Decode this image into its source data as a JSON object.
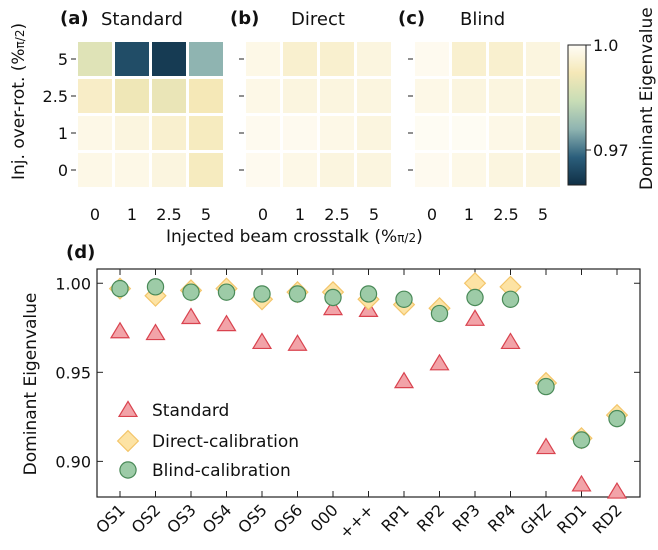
{
  "chart_data": [
    {
      "type": "heatmap",
      "panel_label": "(a)",
      "title": "Standard",
      "x_categories": [
        "0",
        "1",
        "2.5",
        "5"
      ],
      "y_categories": [
        "5",
        "2.5",
        "1",
        "0"
      ],
      "values": [
        [
          0.988,
          0.965,
          0.962,
          0.976
        ],
        [
          0.994,
          0.991,
          0.99,
          0.992
        ],
        [
          0.998,
          0.997,
          0.995,
          0.993
        ],
        [
          0.998,
          0.998,
          0.997,
          0.993
        ]
      ]
    },
    {
      "type": "heatmap",
      "panel_label": "(b)",
      "title": "Direct",
      "x_categories": [
        "0",
        "1",
        "2.5",
        "5"
      ],
      "y_categories": [
        "5",
        "2.5",
        "1",
        "0"
      ],
      "values": [
        [
          0.998,
          0.995,
          0.995,
          0.997
        ],
        [
          0.998,
          0.997,
          0.997,
          0.997
        ],
        [
          0.999,
          0.999,
          0.998,
          0.997
        ],
        [
          0.999,
          0.998,
          0.997,
          0.997
        ]
      ]
    },
    {
      "type": "heatmap",
      "panel_label": "(c)",
      "title": "Blind",
      "x_categories": [
        "0",
        "1",
        "2.5",
        "5"
      ],
      "y_categories": [
        "5",
        "2.5",
        "1",
        "0"
      ],
      "values": [
        [
          0.999,
          0.995,
          0.995,
          0.997
        ],
        [
          0.998,
          0.997,
          0.997,
          0.997
        ],
        [
          0.9995,
          0.9995,
          0.998,
          0.997
        ],
        [
          0.999,
          0.998,
          0.997,
          0.997
        ]
      ]
    },
    {
      "type": "scatter",
      "panel_label": "(d)",
      "ylabel": "Dominant Eigenvalue",
      "ylim": [
        0.88,
        1.008
      ],
      "yticks": [
        "0.90",
        "0.95",
        "1.00"
      ],
      "categories": [
        "OS1",
        "OS2",
        "OS3",
        "OS4",
        "OS5",
        "OS6",
        "000",
        "+++",
        "RP1",
        "RP2",
        "RP3",
        "RP4",
        "GHZ",
        "RD1",
        "RD2"
      ],
      "legend_position": "lower-left",
      "series": [
        {
          "name": "Standard",
          "marker": "triangle",
          "color": "#f2a3a8",
          "edge": "#d9434f",
          "values": [
            0.973,
            0.972,
            0.981,
            0.977,
            0.967,
            0.966,
            0.986,
            0.985,
            0.945,
            0.955,
            0.98,
            0.967,
            0.908,
            0.887,
            0.883
          ]
        },
        {
          "name": "Direct-calibration",
          "marker": "diamond",
          "color": "#fde3a4",
          "edge": "#f3c56a",
          "values": [
            0.997,
            0.993,
            0.996,
            0.997,
            0.991,
            0.995,
            0.995,
            0.991,
            0.988,
            0.986,
            1.0,
            0.998,
            0.944,
            0.913,
            0.926
          ]
        },
        {
          "name": "Blind-calibration",
          "marker": "circle",
          "color": "#9dcba7",
          "edge": "#4a8a58",
          "values": [
            0.997,
            0.998,
            0.995,
            0.995,
            0.994,
            0.994,
            0.992,
            0.994,
            0.991,
            0.983,
            0.992,
            0.991,
            0.942,
            0.912,
            0.924
          ]
        }
      ]
    }
  ],
  "shared_axes": {
    "heatmap_xlabel": "Injected beam crosstalk (%",
    "heatmap_ylabel": "Inj. over-rot. (%",
    "pi_over_2": "π/2",
    "close_paren": ")"
  },
  "colorbar": {
    "label": "Dominant Eigenvalue",
    "tick_top": "1.0",
    "tick_bottom": "0.97",
    "vmin": 0.96,
    "vmax": 1.0,
    "stops": [
      "#0f2f45",
      "#2c5f7c",
      "#8fb4b1",
      "#c8ddb6",
      "#f5e8b7",
      "#fffdf7"
    ]
  }
}
